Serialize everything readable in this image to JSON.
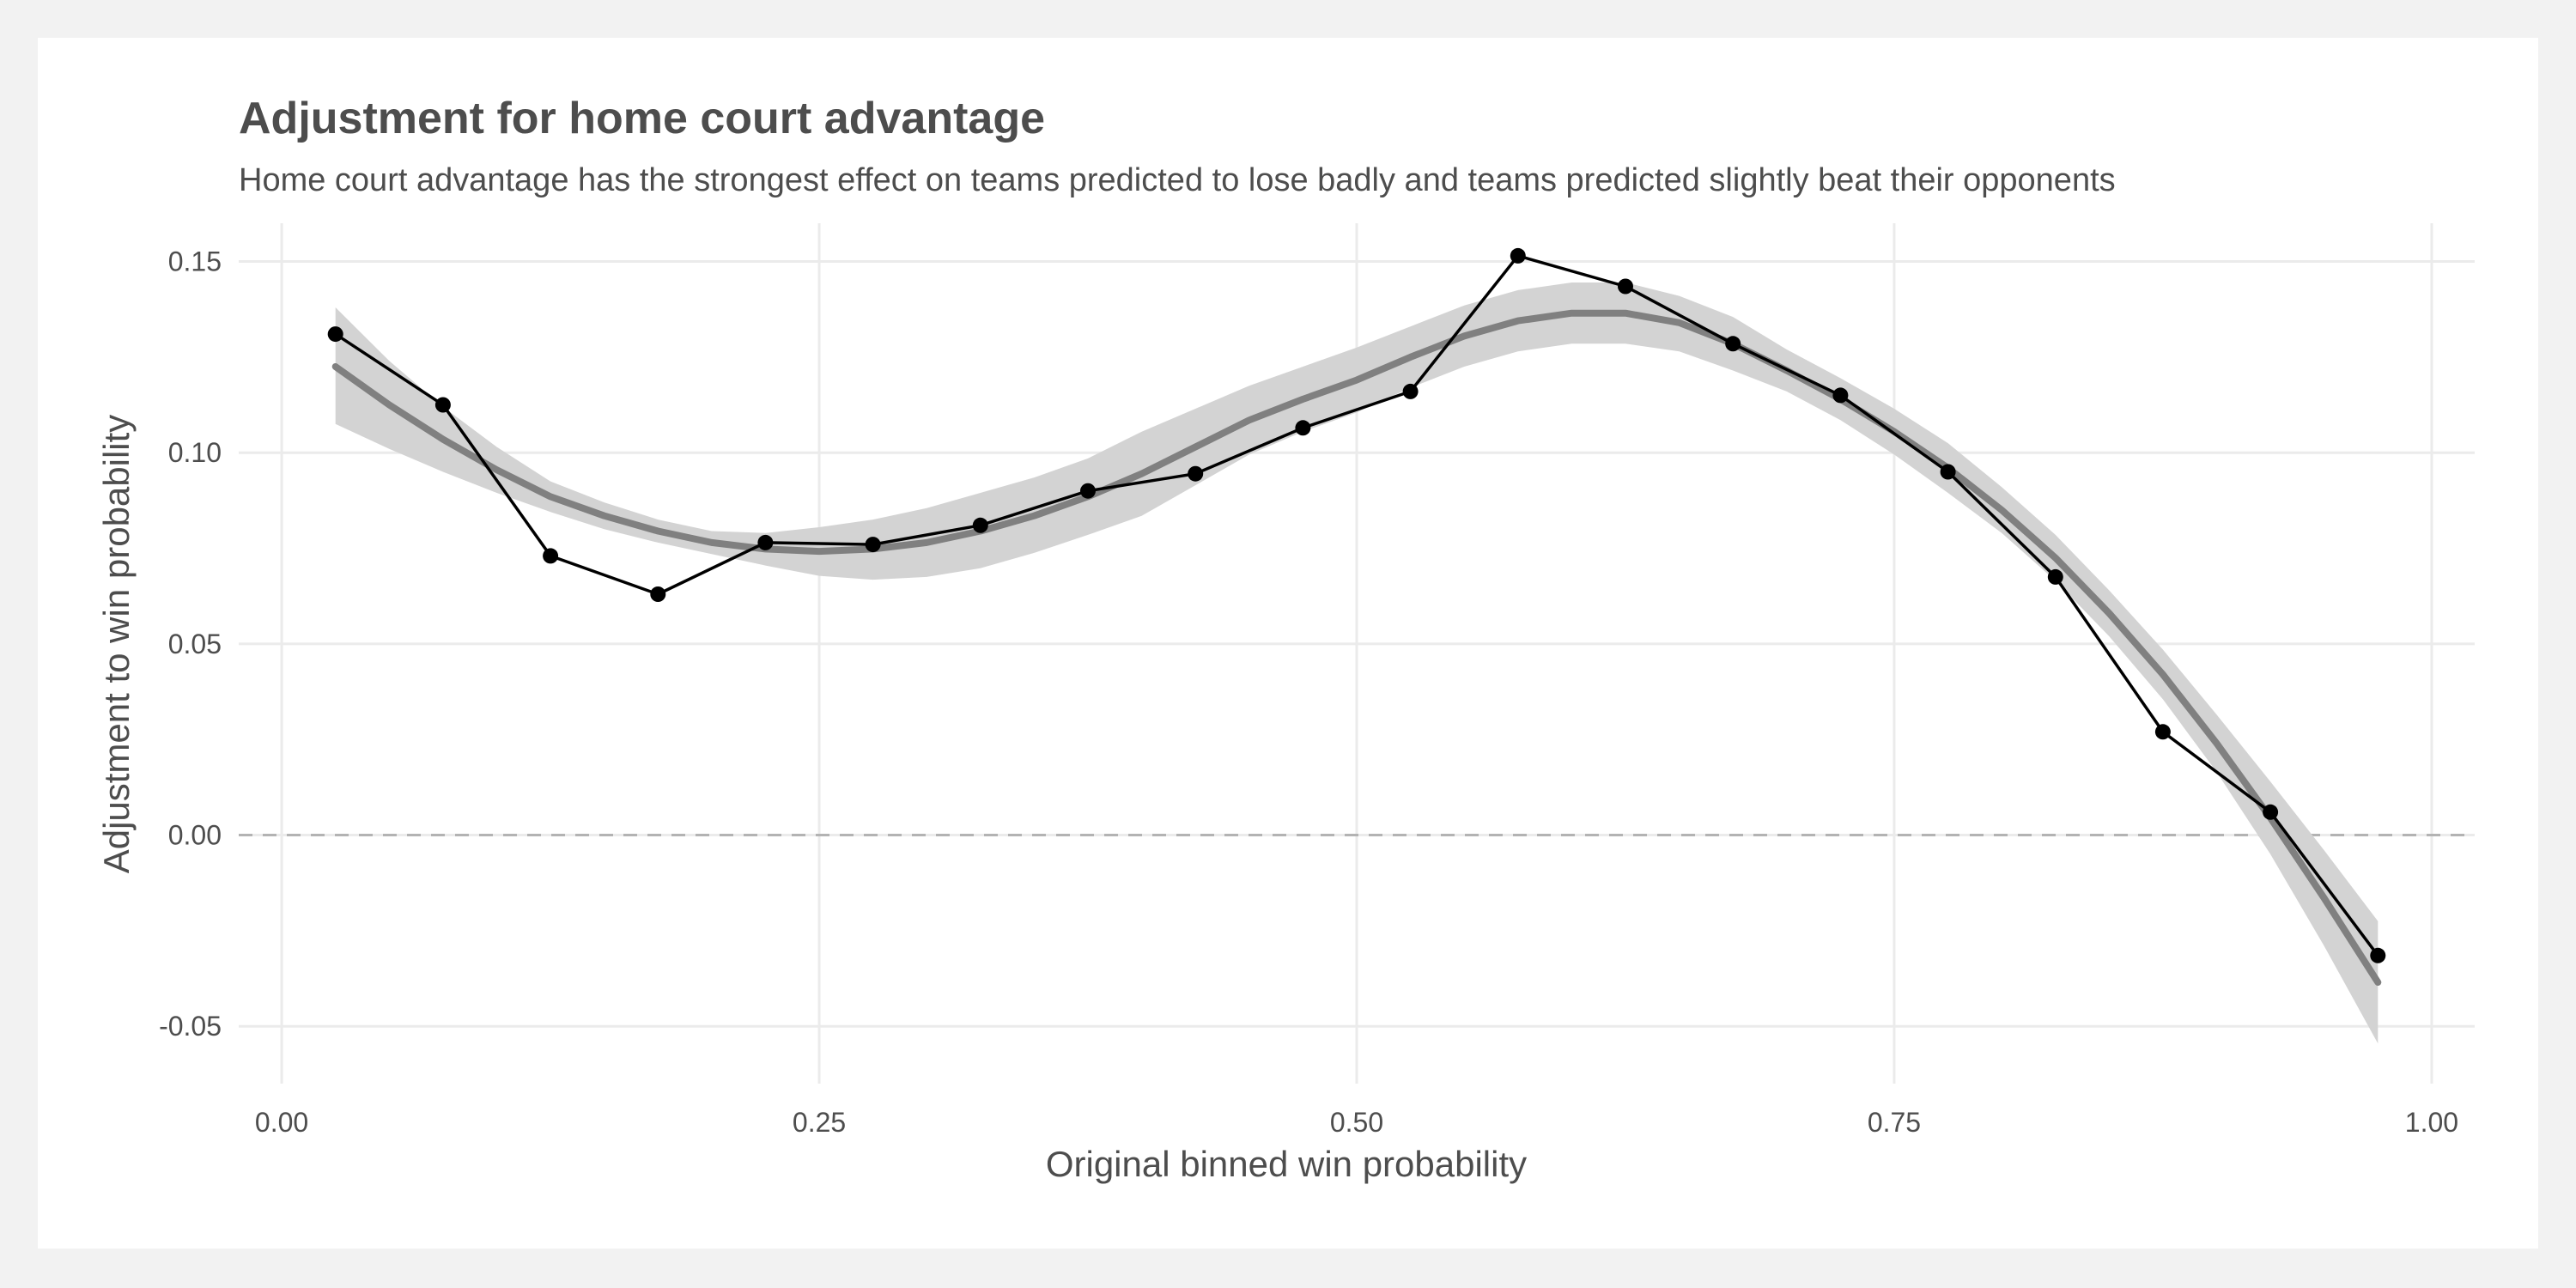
{
  "chart_data": {
    "type": "line",
    "title": "Adjustment for home court advantage",
    "subtitle": "Home court advantage has the strongest effect on teams predicted to lose badly and teams predicted slightly beat their opponents",
    "xlabel": "Original binned win probability",
    "ylabel": "Adjustment to win probability",
    "xlim": [
      -0.02,
      1.02
    ],
    "ylim": [
      -0.065,
      0.16
    ],
    "x_ticks": [
      0.0,
      0.25,
      0.5,
      0.75,
      1.0
    ],
    "x_tick_labels": [
      "0.00",
      "0.25",
      "0.50",
      "0.75",
      "1.00"
    ],
    "y_ticks": [
      -0.05,
      0.0,
      0.05,
      0.1,
      0.15
    ],
    "y_tick_labels": [
      "-0.05",
      "0.00",
      "0.05",
      "0.10",
      "0.15"
    ],
    "grid": true,
    "reference_line": {
      "y": 0,
      "style": "dashed"
    },
    "series": [
      {
        "kind": "points_line",
        "x": [
          0.025,
          0.075,
          0.125,
          0.175,
          0.225,
          0.275,
          0.325,
          0.375,
          0.425,
          0.475,
          0.525,
          0.575,
          0.625,
          0.675,
          0.725,
          0.775,
          0.825,
          0.875,
          0.925,
          0.975
        ],
        "values": [
          0.131,
          0.1125,
          0.073,
          0.063,
          0.0765,
          0.076,
          0.081,
          0.09,
          0.0945,
          0.1065,
          0.116,
          0.1515,
          0.1435,
          0.1285,
          0.115,
          0.095,
          0.0675,
          0.027,
          0.006,
          -0.0315
        ]
      },
      {
        "kind": "smooth",
        "x": [
          0.025,
          0.05,
          0.075,
          0.1,
          0.125,
          0.15,
          0.175,
          0.2,
          0.225,
          0.25,
          0.275,
          0.3,
          0.325,
          0.35,
          0.375,
          0.4,
          0.425,
          0.45,
          0.475,
          0.5,
          0.525,
          0.55,
          0.575,
          0.6,
          0.625,
          0.65,
          0.675,
          0.7,
          0.725,
          0.75,
          0.775,
          0.8,
          0.825,
          0.85,
          0.875,
          0.9,
          0.925,
          0.95,
          0.975
        ],
        "values": [
          0.1225,
          0.1125,
          0.1035,
          0.0955,
          0.0885,
          0.0835,
          0.0795,
          0.0765,
          0.0748,
          0.0742,
          0.0748,
          0.0765,
          0.0795,
          0.0835,
          0.0885,
          0.0945,
          0.1015,
          0.1085,
          0.114,
          0.119,
          0.125,
          0.1305,
          0.1345,
          0.1365,
          0.1365,
          0.134,
          0.1285,
          0.1215,
          0.114,
          0.1055,
          0.096,
          0.085,
          0.0725,
          0.058,
          0.042,
          0.024,
          0.0045,
          -0.0165,
          -0.0385
        ],
        "ci_lower": [
          0.1075,
          0.101,
          0.095,
          0.0895,
          0.0845,
          0.08,
          0.0765,
          0.0735,
          0.0705,
          0.0678,
          0.0668,
          0.0675,
          0.0698,
          0.0738,
          0.0785,
          0.0835,
          0.0915,
          0.0995,
          0.1055,
          0.1105,
          0.117,
          0.1225,
          0.1265,
          0.1285,
          0.1285,
          0.1265,
          0.1215,
          0.116,
          0.1085,
          0.0995,
          0.0895,
          0.079,
          0.0665,
          0.052,
          0.0355,
          0.0165,
          -0.005,
          -0.029,
          -0.0545
        ],
        "ci_upper": [
          0.138,
          0.124,
          0.112,
          0.1015,
          0.0925,
          0.087,
          0.0825,
          0.0795,
          0.079,
          0.0805,
          0.0825,
          0.0855,
          0.0895,
          0.0935,
          0.0985,
          0.1055,
          0.1115,
          0.1175,
          0.1225,
          0.1275,
          0.133,
          0.1385,
          0.1425,
          0.1445,
          0.1445,
          0.141,
          0.1355,
          0.127,
          0.1195,
          0.1115,
          0.1025,
          0.091,
          0.0785,
          0.064,
          0.0485,
          0.0315,
          0.014,
          -0.004,
          -0.0225
        ]
      }
    ]
  }
}
